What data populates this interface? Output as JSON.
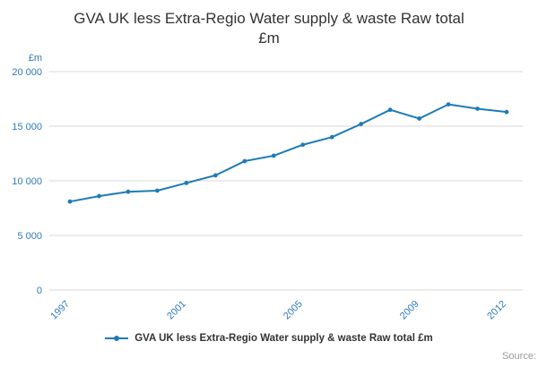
{
  "title": {
    "line1": "GVA UK less Extra-Regio Water supply & waste Raw total",
    "line2": "£m"
  },
  "chart_data": {
    "type": "line",
    "title": "GVA UK less Extra-Regio Water supply & waste Raw total £m",
    "x": [
      1997,
      1998,
      1999,
      2000,
      2001,
      2002,
      2003,
      2004,
      2005,
      2006,
      2007,
      2008,
      2009,
      2010,
      2011,
      2012
    ],
    "series": [
      {
        "name": "GVA UK less Extra-Regio Water supply & waste Raw total £m",
        "values": [
          8100,
          8600,
          9000,
          9100,
          9800,
          10500,
          11800,
          12300,
          13300,
          14000,
          15200,
          16500,
          15700,
          17000,
          16600,
          16300
        ]
      }
    ],
    "xlabel": "",
    "ylabel": "£m",
    "ylim": [
      0,
      20000
    ],
    "y_ticks": [
      0,
      5000,
      10000,
      15000,
      20000
    ],
    "y_tick_labels": [
      "0",
      "5 000",
      "10 000",
      "15 000",
      "20 000"
    ],
    "x_ticks": [
      1997,
      2001,
      2005,
      2009,
      2012
    ],
    "x_tick_labels": [
      "1997",
      "2001",
      "2005",
      "2009",
      "2012"
    ],
    "grid": "horizontal",
    "legend_position": "bottom"
  },
  "legend": {
    "label": "GVA UK less Extra-Regio Water supply & waste Raw total £m"
  },
  "footer": {
    "source_label": "Source:"
  },
  "colors": {
    "accent": "#1f7bb6",
    "axis_label": "#2f7ab9",
    "grid": "#d9d9d9",
    "title": "#333333",
    "source": "#999999"
  }
}
